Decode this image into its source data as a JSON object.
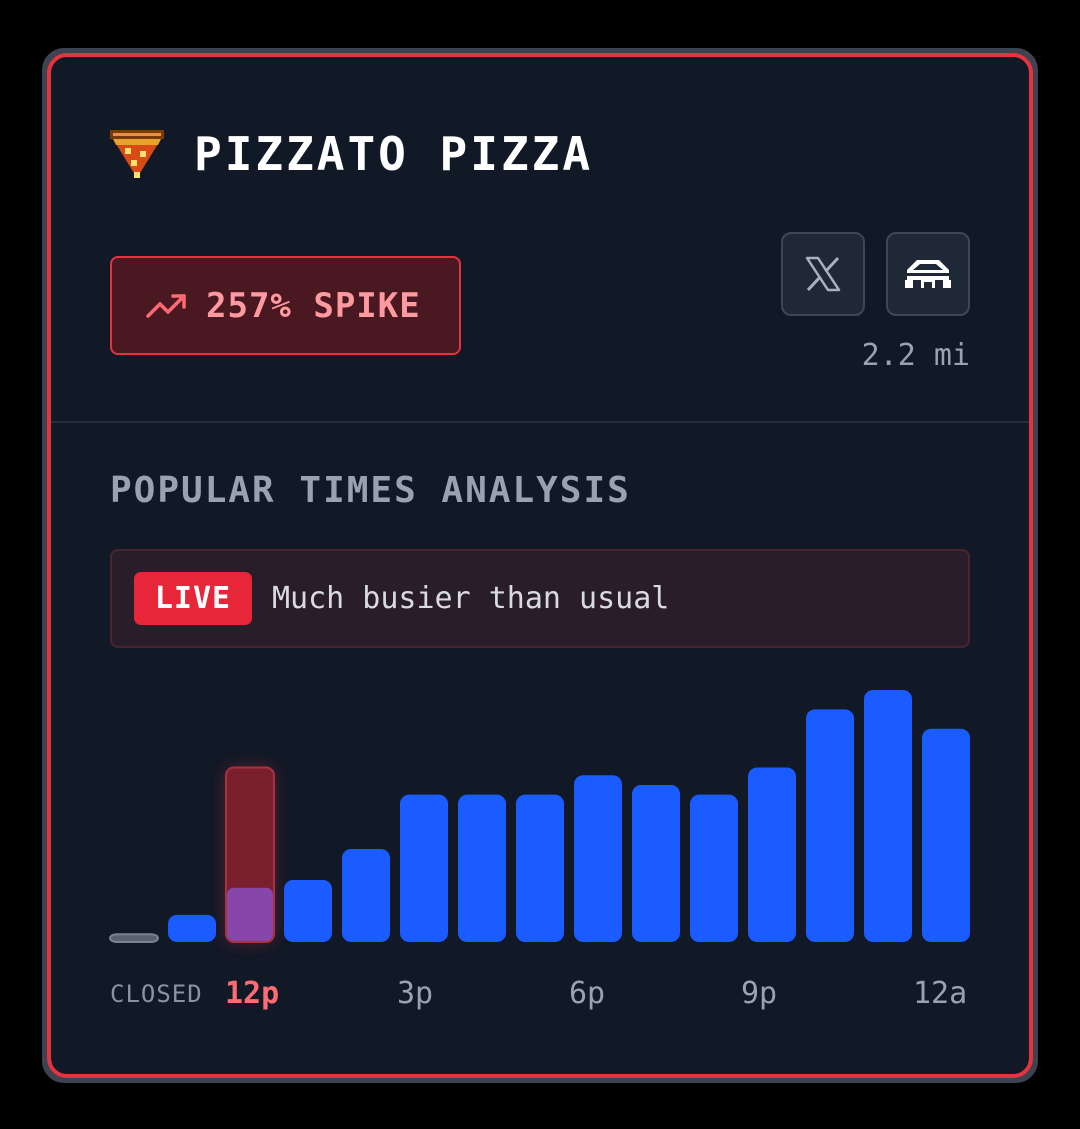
{
  "venue": {
    "name": "PIZZATO PIZZA",
    "logo_icon": "pizza-slice-icon",
    "spike_label": "257% SPIKE",
    "spike_icon": "trending-up-icon",
    "distance": "2.2 mi",
    "links": [
      {
        "icon": "x-logo-icon"
      },
      {
        "icon": "building-icon"
      }
    ]
  },
  "section": {
    "title": "POPULAR TIMES ANALYSIS",
    "live_badge": "LIVE",
    "live_status": "Much busier than usual"
  },
  "colors": {
    "accent_red": "#e5323f",
    "bar_blue": "#1a5cff",
    "closed_gray": "#5a6272",
    "live_usual": "#8a4ec0",
    "live_current": "#7a1f2e"
  },
  "chart_data": {
    "type": "bar",
    "x_tick_labels": [
      "CLOSED",
      "12p",
      "3p",
      "6p",
      "9p",
      "12a"
    ],
    "series": [
      {
        "values": [
          4,
          14,
          28,
          32,
          48,
          76,
          76,
          76,
          86,
          81,
          76,
          90,
          120,
          130,
          110
        ]
      }
    ],
    "live_hour_index": 2,
    "live_current_value": 90,
    "closed_hour_indices": [
      0
    ],
    "ylim": [
      0,
      130
    ],
    "grid": false,
    "legend": "none"
  }
}
